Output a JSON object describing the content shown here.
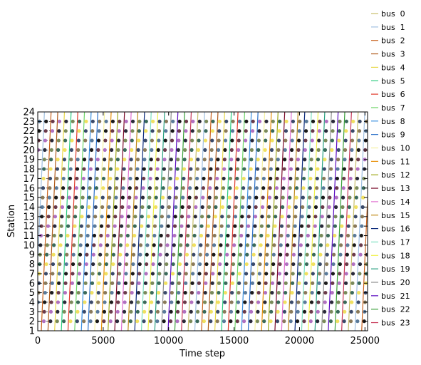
{
  "chart_data": {
    "type": "line",
    "title": "",
    "xlabel": "Time step",
    "ylabel": "Station",
    "xlim": [
      0,
      25200
    ],
    "ylim": [
      1,
      24
    ],
    "xticks": [
      0,
      5000,
      10000,
      15000,
      20000,
      25000
    ],
    "xtick_labels": [
      "0",
      "5000",
      "10000",
      "15000",
      "20000",
      "25000"
    ],
    "yticks": [
      1,
      2,
      3,
      4,
      5,
      6,
      7,
      8,
      9,
      10,
      11,
      12,
      13,
      14,
      15,
      16,
      17,
      18,
      19,
      20,
      21,
      22,
      23,
      24
    ],
    "ytick_labels": [
      "1",
      "2",
      "3",
      "4",
      "5",
      "6",
      "7",
      "8",
      "9",
      "10",
      "11",
      "12",
      "13",
      "14",
      "15",
      "16",
      "17",
      "18",
      "19",
      "20",
      "21",
      "22",
      "23",
      "24"
    ],
    "stop_stations": [
      2,
      3,
      4,
      5,
      6,
      7,
      8,
      9,
      10,
      11,
      12,
      13,
      14,
      15,
      16,
      17,
      18,
      19,
      20,
      21,
      22,
      23
    ],
    "legend_position": "right",
    "bus_dispatch_interval": 510,
    "bus_route_duration": 750,
    "series": [
      {
        "name": "bus  0",
        "color": "#c9bf6b"
      },
      {
        "name": "bus  1",
        "color": "#9fbfe0"
      },
      {
        "name": "bus  2",
        "color": "#c8621e"
      },
      {
        "name": "bus  3",
        "color": "#b05a1a"
      },
      {
        "name": "bus  4",
        "color": "#e8d84a"
      },
      {
        "name": "bus  5",
        "color": "#2ecc80"
      },
      {
        "name": "bus  6",
        "color": "#e03a2a"
      },
      {
        "name": "bus  7",
        "color": "#6fd66a"
      },
      {
        "name": "bus  8",
        "color": "#3a8fe0"
      },
      {
        "name": "bus  9",
        "color": "#2a6fc8"
      },
      {
        "name": "bus  10",
        "color": "#f4f0a0"
      },
      {
        "name": "bus  11",
        "color": "#e8900a"
      },
      {
        "name": "bus  12",
        "color": "#a0a81a"
      },
      {
        "name": "bus  13",
        "color": "#7a0a2a"
      },
      {
        "name": "bus  14",
        "color": "#e070d0"
      },
      {
        "name": "bus  15",
        "color": "#c08a1a"
      },
      {
        "name": "bus  16",
        "color": "#0a2a7a"
      },
      {
        "name": "bus  17",
        "color": "#7fe0c0"
      },
      {
        "name": "bus  18",
        "color": "#f0f04a"
      },
      {
        "name": "bus  19",
        "color": "#2aa080"
      },
      {
        "name": "bus  20",
        "color": "#909090"
      },
      {
        "name": "bus  21",
        "color": "#5a0ac0"
      },
      {
        "name": "bus  22",
        "color": "#3aa03a"
      },
      {
        "name": "bus  23",
        "color": "#c83a5a"
      }
    ],
    "marker_colors": [
      "#1a1a1a",
      "#3a4a6a",
      "#7a8a5a",
      "#6a3a4a",
      "#8a7a5a",
      "#3a6a5a",
      "#b070c0",
      "#5a7a9a",
      "#f0e060",
      "#2a2a3a"
    ]
  }
}
